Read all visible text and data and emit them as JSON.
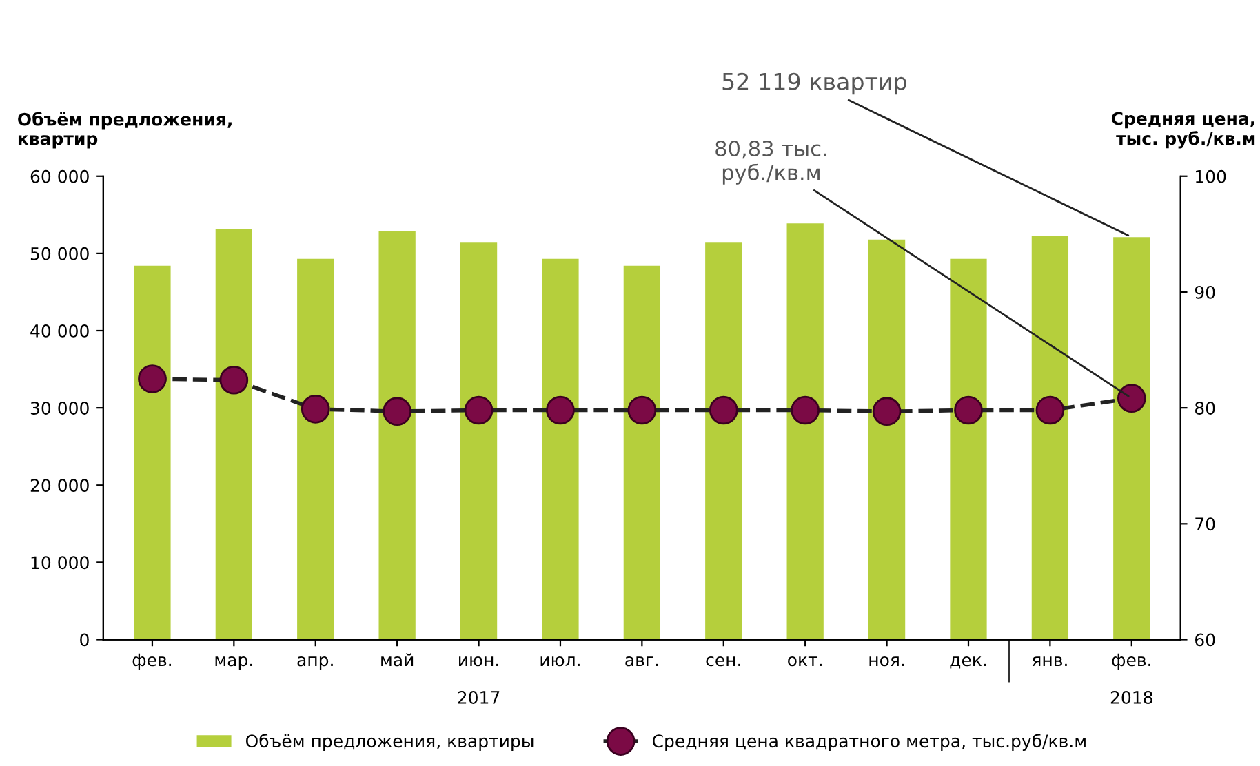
{
  "chart_data": {
    "type": "bar",
    "categories": [
      "фев.",
      "мар.",
      "апр.",
      "май",
      "июн.",
      "июл.",
      "авг.",
      "сен.",
      "окт.",
      "ноя.",
      "дек.",
      "янв.",
      "фев."
    ],
    "ylabel": "Объём предложения,\nквартир",
    "y2label": "Средняя цена,\nтыс. руб./кв.м",
    "ylim": [
      0,
      60000
    ],
    "yticks": [
      {
        "value": 0,
        "label": "0"
      },
      {
        "value": 10000,
        "label": "10 000"
      },
      {
        "value": 20000,
        "label": "20 000"
      },
      {
        "value": 30000,
        "label": "30 000"
      },
      {
        "value": 40000,
        "label": "40 000"
      },
      {
        "value": 50000,
        "label": "50 000"
      },
      {
        "value": 60000,
        "label": "60 000"
      }
    ],
    "y2lim": [
      60,
      100
    ],
    "y2ticks": [
      60,
      70,
      80,
      90,
      100
    ],
    "series": [
      {
        "name": "Объём предложения, квартиры",
        "color": "#b5cf3c",
        "values": [
          48400,
          53200,
          49300,
          52900,
          51400,
          49300,
          48400,
          51400,
          53900,
          51800,
          49300,
          52300,
          52119
        ],
        "value_labels": [
          null,
          null,
          null,
          null,
          null,
          null,
          null,
          null,
          null,
          null,
          null,
          null,
          "52 119 квартир"
        ]
      },
      {
        "name": "Средняя цена квадратного метра, тыс.руб/кв.м",
        "type": "line",
        "axis": "y2",
        "color": "#7b0a45",
        "marker": "circle",
        "line_style": "dashed",
        "values": [
          82.5,
          82.4,
          79.9,
          79.7,
          79.8,
          79.8,
          79.8,
          79.8,
          79.8,
          79.7,
          79.8,
          79.8,
          80.83
        ],
        "value_labels": [
          null,
          null,
          null,
          null,
          null,
          null,
          null,
          null,
          null,
          null,
          null,
          null,
          "80,83 тыс.\nруб./кв.м"
        ]
      }
    ],
    "annotations": [
      "2017",
      "2018"
    ],
    "legend": "bottom",
    "grid": false
  }
}
